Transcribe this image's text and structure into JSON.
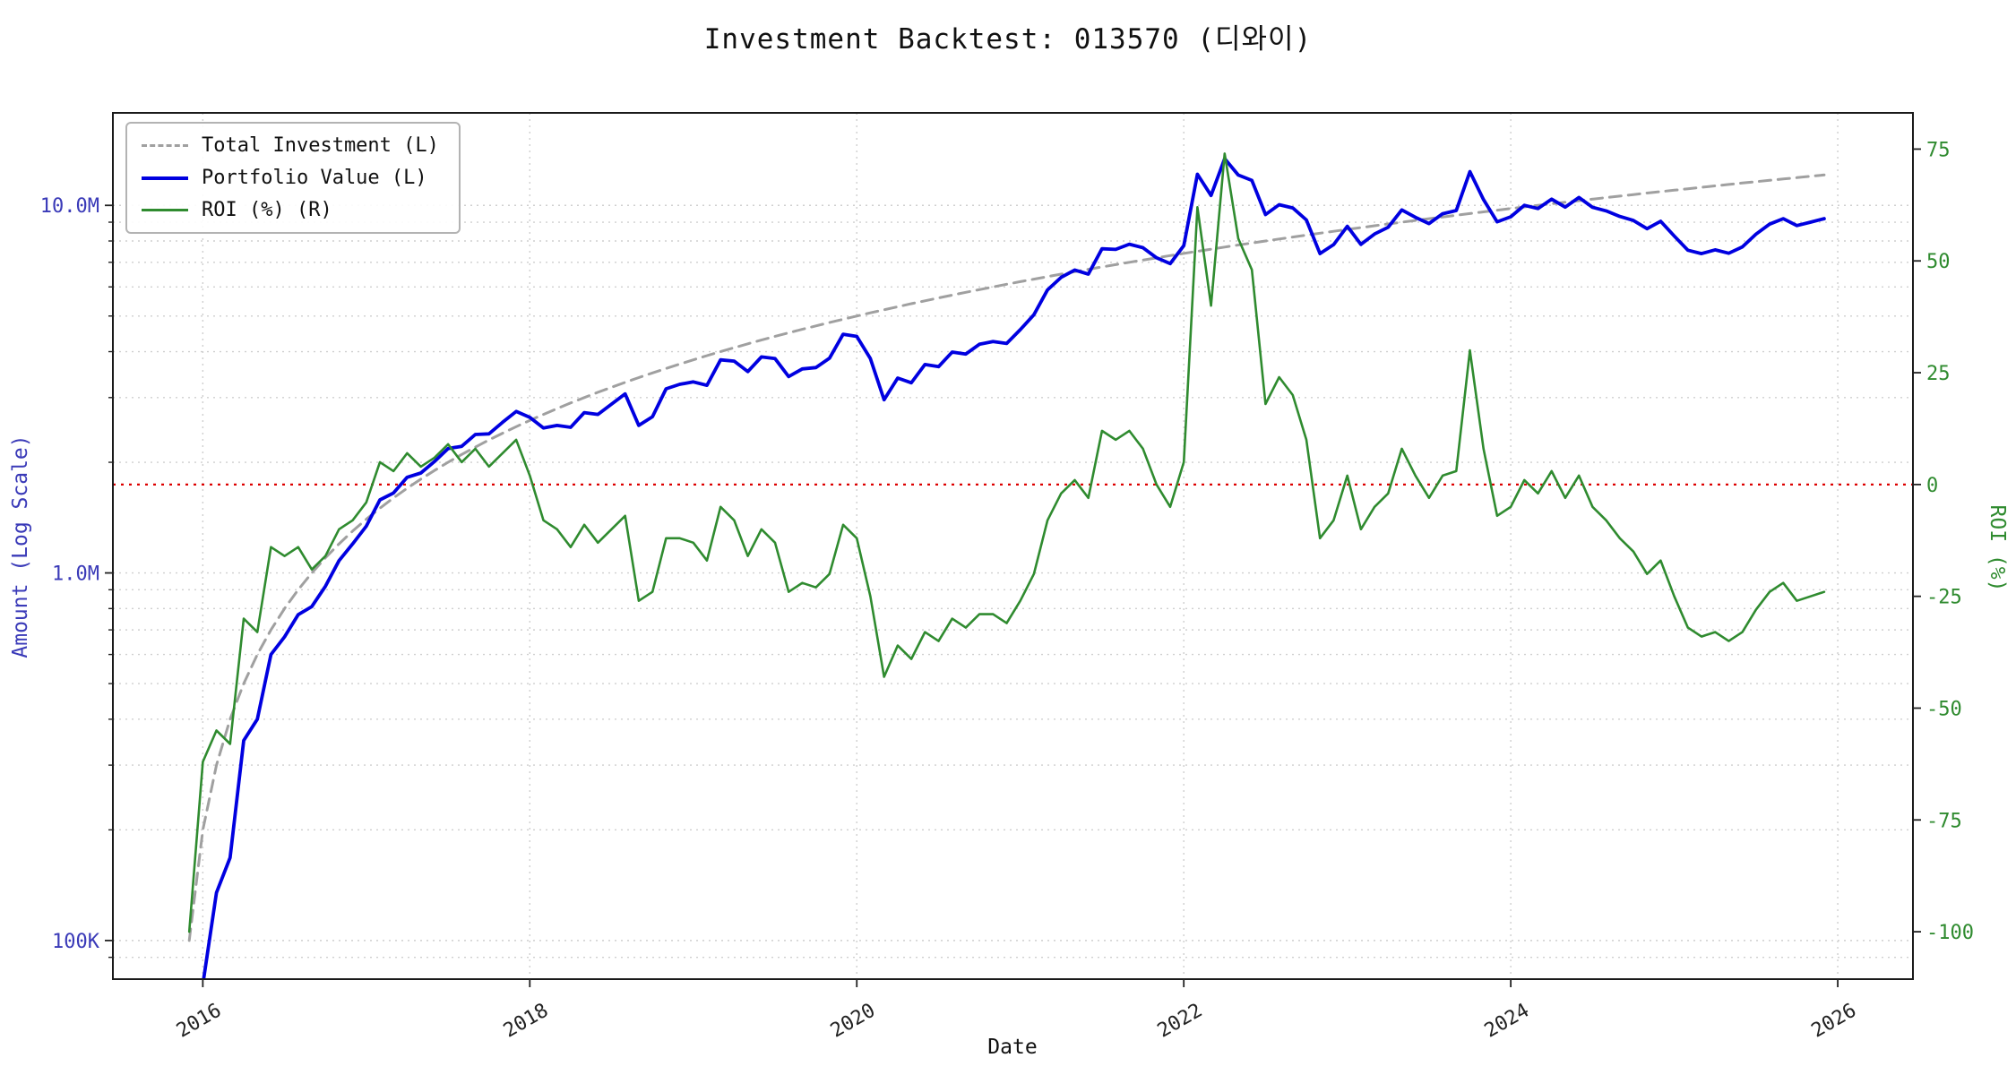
{
  "chart": {
    "title": "Investment Backtest: 013570 (디와이)",
    "xlabel": "Date",
    "ylabel_left": "Amount (Log Scale)",
    "ylabel_right": "ROI (%)",
    "legend": [
      {
        "label": "Total Investment (L)"
      },
      {
        "label": "Portfolio Value (L)"
      },
      {
        "label": "ROI (%) (R)"
      }
    ],
    "colors": {
      "total_investment": "#a0a0a0",
      "portfolio_value": "#0000e0",
      "roi": "#2f8b2f",
      "zero_line": "#dd0000",
      "grid": "#cfcfcf",
      "left_axis_text": "#3a3ab8",
      "right_axis_text": "#2f8b2f"
    }
  },
  "chart_data": {
    "type": "line",
    "title": "Investment Backtest: 013570 (디와이)",
    "xlabel": "Date",
    "ylabel_left": "Amount (Log Scale)",
    "ylabel_right": "ROI (%)",
    "legend_position": "upper left",
    "grid": true,
    "x_axis": {
      "ticks": [
        2016,
        2018,
        2020,
        2022,
        2024,
        2026
      ],
      "range": [
        2015.45,
        2026.46
      ]
    },
    "left_axis": {
      "scale": "log",
      "unit": "M",
      "tick_labels": [
        {
          "label": "10.0M",
          "value": 10
        },
        {
          "label": "1.0M",
          "value": 1
        },
        {
          "label": "100K",
          "value": 0.1
        }
      ],
      "grid_major_M": [
        0.1,
        1,
        10
      ],
      "grid_minor_M": [
        0.09,
        0.2,
        0.3,
        0.4,
        0.5,
        0.6,
        0.7,
        0.8,
        0.9,
        2,
        3,
        4,
        5,
        6,
        7,
        8,
        9
      ],
      "range_M": [
        0.0785,
        17.85
      ]
    },
    "right_axis": {
      "ticks": [
        75,
        50,
        25,
        0,
        -25,
        -50,
        -75,
        -100
      ],
      "range": [
        -110.6,
        83.1
      ]
    },
    "zero_line": {
      "axis": "right",
      "value": 0,
      "color": "#dd0000",
      "style": "dotted"
    },
    "x_months": [
      "2015-12",
      "2016-01",
      "2016-02",
      "2016-03",
      "2016-04",
      "2016-05",
      "2016-06",
      "2016-07",
      "2016-08",
      "2016-09",
      "2016-10",
      "2016-11",
      "2016-12",
      "2017-01",
      "2017-02",
      "2017-03",
      "2017-04",
      "2017-05",
      "2017-06",
      "2017-07",
      "2017-08",
      "2017-09",
      "2017-10",
      "2017-11",
      "2017-12",
      "2018-01",
      "2018-02",
      "2018-03",
      "2018-04",
      "2018-05",
      "2018-06",
      "2018-07",
      "2018-08",
      "2018-09",
      "2018-10",
      "2018-11",
      "2018-12",
      "2019-01",
      "2019-02",
      "2019-03",
      "2019-04",
      "2019-05",
      "2019-06",
      "2019-07",
      "2019-08",
      "2019-09",
      "2019-10",
      "2019-11",
      "2019-12",
      "2020-01",
      "2020-02",
      "2020-03",
      "2020-04",
      "2020-05",
      "2020-06",
      "2020-07",
      "2020-08",
      "2020-09",
      "2020-10",
      "2020-11",
      "2020-12",
      "2021-01",
      "2021-02",
      "2021-03",
      "2021-04",
      "2021-05",
      "2021-06",
      "2021-07",
      "2021-08",
      "2021-09",
      "2021-10",
      "2021-11",
      "2021-12",
      "2022-01",
      "2022-02",
      "2022-03",
      "2022-04",
      "2022-05",
      "2022-06",
      "2022-07",
      "2022-08",
      "2022-09",
      "2022-10",
      "2022-11",
      "2022-12",
      "2023-01",
      "2023-02",
      "2023-03",
      "2023-04",
      "2023-05",
      "2023-06",
      "2023-07",
      "2023-08",
      "2023-09",
      "2023-10",
      "2023-11",
      "2023-12",
      "2024-01",
      "2024-02",
      "2024-03",
      "2024-04",
      "2024-05",
      "2024-06",
      "2024-07",
      "2024-08",
      "2024-09",
      "2024-10",
      "2024-11",
      "2024-12",
      "2025-01",
      "2025-02",
      "2025-03",
      "2025-04",
      "2025-05",
      "2025-06",
      "2025-07",
      "2025-08",
      "2025-09",
      "2025-10",
      "2025-11",
      "2025-12"
    ],
    "series": [
      {
        "name": "Total Investment (L)",
        "axis": "left",
        "unit": "M",
        "color": "#a0a0a0",
        "style": "dashed",
        "width": 3,
        "values": [
          0.1,
          0.2,
          0.3,
          0.4,
          0.5,
          0.6,
          0.7,
          0.8,
          0.9,
          1.0,
          1.1,
          1.2,
          1.3,
          1.4,
          1.5,
          1.6,
          1.7,
          1.8,
          1.9,
          2.0,
          2.1,
          2.2,
          2.3,
          2.4,
          2.5,
          2.6,
          2.7,
          2.8,
          2.9,
          3.0,
          3.1,
          3.2,
          3.3,
          3.4,
          3.5,
          3.6,
          3.7,
          3.8,
          3.9,
          4.0,
          4.1,
          4.2,
          4.3,
          4.4,
          4.5,
          4.6,
          4.7,
          4.8,
          4.9,
          5.0,
          5.1,
          5.2,
          5.3,
          5.4,
          5.5,
          5.6,
          5.7,
          5.8,
          5.9,
          6.0,
          6.1,
          6.2,
          6.3,
          6.4,
          6.5,
          6.6,
          6.7,
          6.8,
          6.9,
          7.0,
          7.1,
          7.2,
          7.3,
          7.4,
          7.5,
          7.6,
          7.7,
          7.8,
          7.9,
          8.0,
          8.1,
          8.2,
          8.3,
          8.4,
          8.5,
          8.6,
          8.7,
          8.8,
          8.9,
          9.0,
          9.1,
          9.2,
          9.3,
          9.4,
          9.5,
          9.6,
          9.7,
          9.8,
          9.9,
          10.0,
          10.1,
          10.2,
          10.3,
          10.4,
          10.5,
          10.6,
          10.7,
          10.8,
          10.9,
          11.0,
          11.1,
          11.2,
          11.3,
          11.4,
          11.5,
          11.6,
          11.7,
          11.8,
          11.9,
          12.0,
          12.1
        ]
      },
      {
        "name": "Portfolio Value (L)",
        "axis": "left",
        "unit": "M",
        "color": "#0000e0",
        "style": "solid",
        "width": 3.8,
        "values": [
          0.0,
          0.076,
          0.135,
          0.168,
          0.35,
          0.4,
          0.6,
          0.67,
          0.77,
          0.81,
          0.92,
          1.08,
          1.2,
          1.34,
          1.58,
          1.65,
          1.82,
          1.87,
          2.01,
          2.18,
          2.21,
          2.38,
          2.39,
          2.57,
          2.75,
          2.65,
          2.48,
          2.52,
          2.49,
          2.73,
          2.7,
          2.88,
          3.07,
          2.52,
          2.66,
          3.17,
          3.26,
          3.31,
          3.24,
          3.8,
          3.77,
          3.53,
          3.87,
          3.83,
          3.42,
          3.59,
          3.62,
          3.84,
          4.46,
          4.4,
          3.83,
          2.96,
          3.39,
          3.29,
          3.69,
          3.64,
          3.99,
          3.94,
          4.19,
          4.26,
          4.21,
          4.59,
          5.04,
          5.89,
          6.37,
          6.67,
          6.5,
          7.62,
          7.59,
          7.84,
          7.67,
          7.2,
          6.94,
          7.77,
          12.15,
          10.64,
          13.4,
          12.09,
          11.69,
          9.44,
          10.04,
          9.84,
          9.13,
          7.39,
          7.82,
          8.77,
          7.83,
          8.36,
          8.72,
          9.72,
          9.28,
          8.92,
          9.49,
          9.68,
          12.35,
          10.37,
          9.02,
          9.31,
          10.0,
          9.8,
          10.4,
          9.89,
          10.51,
          9.88,
          9.66,
          9.33,
          9.1,
          8.64,
          9.05,
          8.25,
          7.55,
          7.39,
          7.57,
          7.41,
          7.71,
          8.35,
          8.89,
          9.2,
          8.81,
          9.0,
          9.2
        ]
      },
      {
        "name": "ROI (%) (R)",
        "axis": "right",
        "unit": "%",
        "color": "#2f8b2f",
        "style": "solid",
        "width": 2.6,
        "values": [
          -100,
          -62,
          -55,
          -58,
          -30,
          -33,
          -14,
          -16,
          -14,
          -19,
          -16,
          -10,
          -8,
          -4,
          5,
          3,
          7,
          4,
          6,
          9,
          5,
          8,
          4,
          7,
          10,
          2,
          -8,
          -10,
          -14,
          -9,
          -13,
          -10,
          -7,
          -26,
          -24,
          -12,
          -12,
          -13,
          -17,
          -5,
          -8,
          -16,
          -10,
          -13,
          -24,
          -22,
          -23,
          -20,
          -9,
          -12,
          -25,
          -43,
          -36,
          -39,
          -33,
          -35,
          -30,
          -32,
          -29,
          -29,
          -31,
          -26,
          -20,
          -8,
          -2,
          1,
          -3,
          12,
          10,
          12,
          8,
          0,
          -5,
          5,
          62,
          40,
          74,
          55,
          48,
          18,
          24,
          20,
          10,
          -12,
          -8,
          2,
          -10,
          -5,
          -2,
          8,
          2,
          -3,
          2,
          3,
          30,
          8,
          -7,
          -5,
          1,
          -2,
          3,
          -3,
          2,
          -5,
          -8,
          -12,
          -15,
          -20,
          -17,
          -25,
          -32,
          -34,
          -33,
          -35,
          -33,
          -28,
          -24,
          -22,
          -26,
          -25,
          -24
        ]
      }
    ]
  }
}
